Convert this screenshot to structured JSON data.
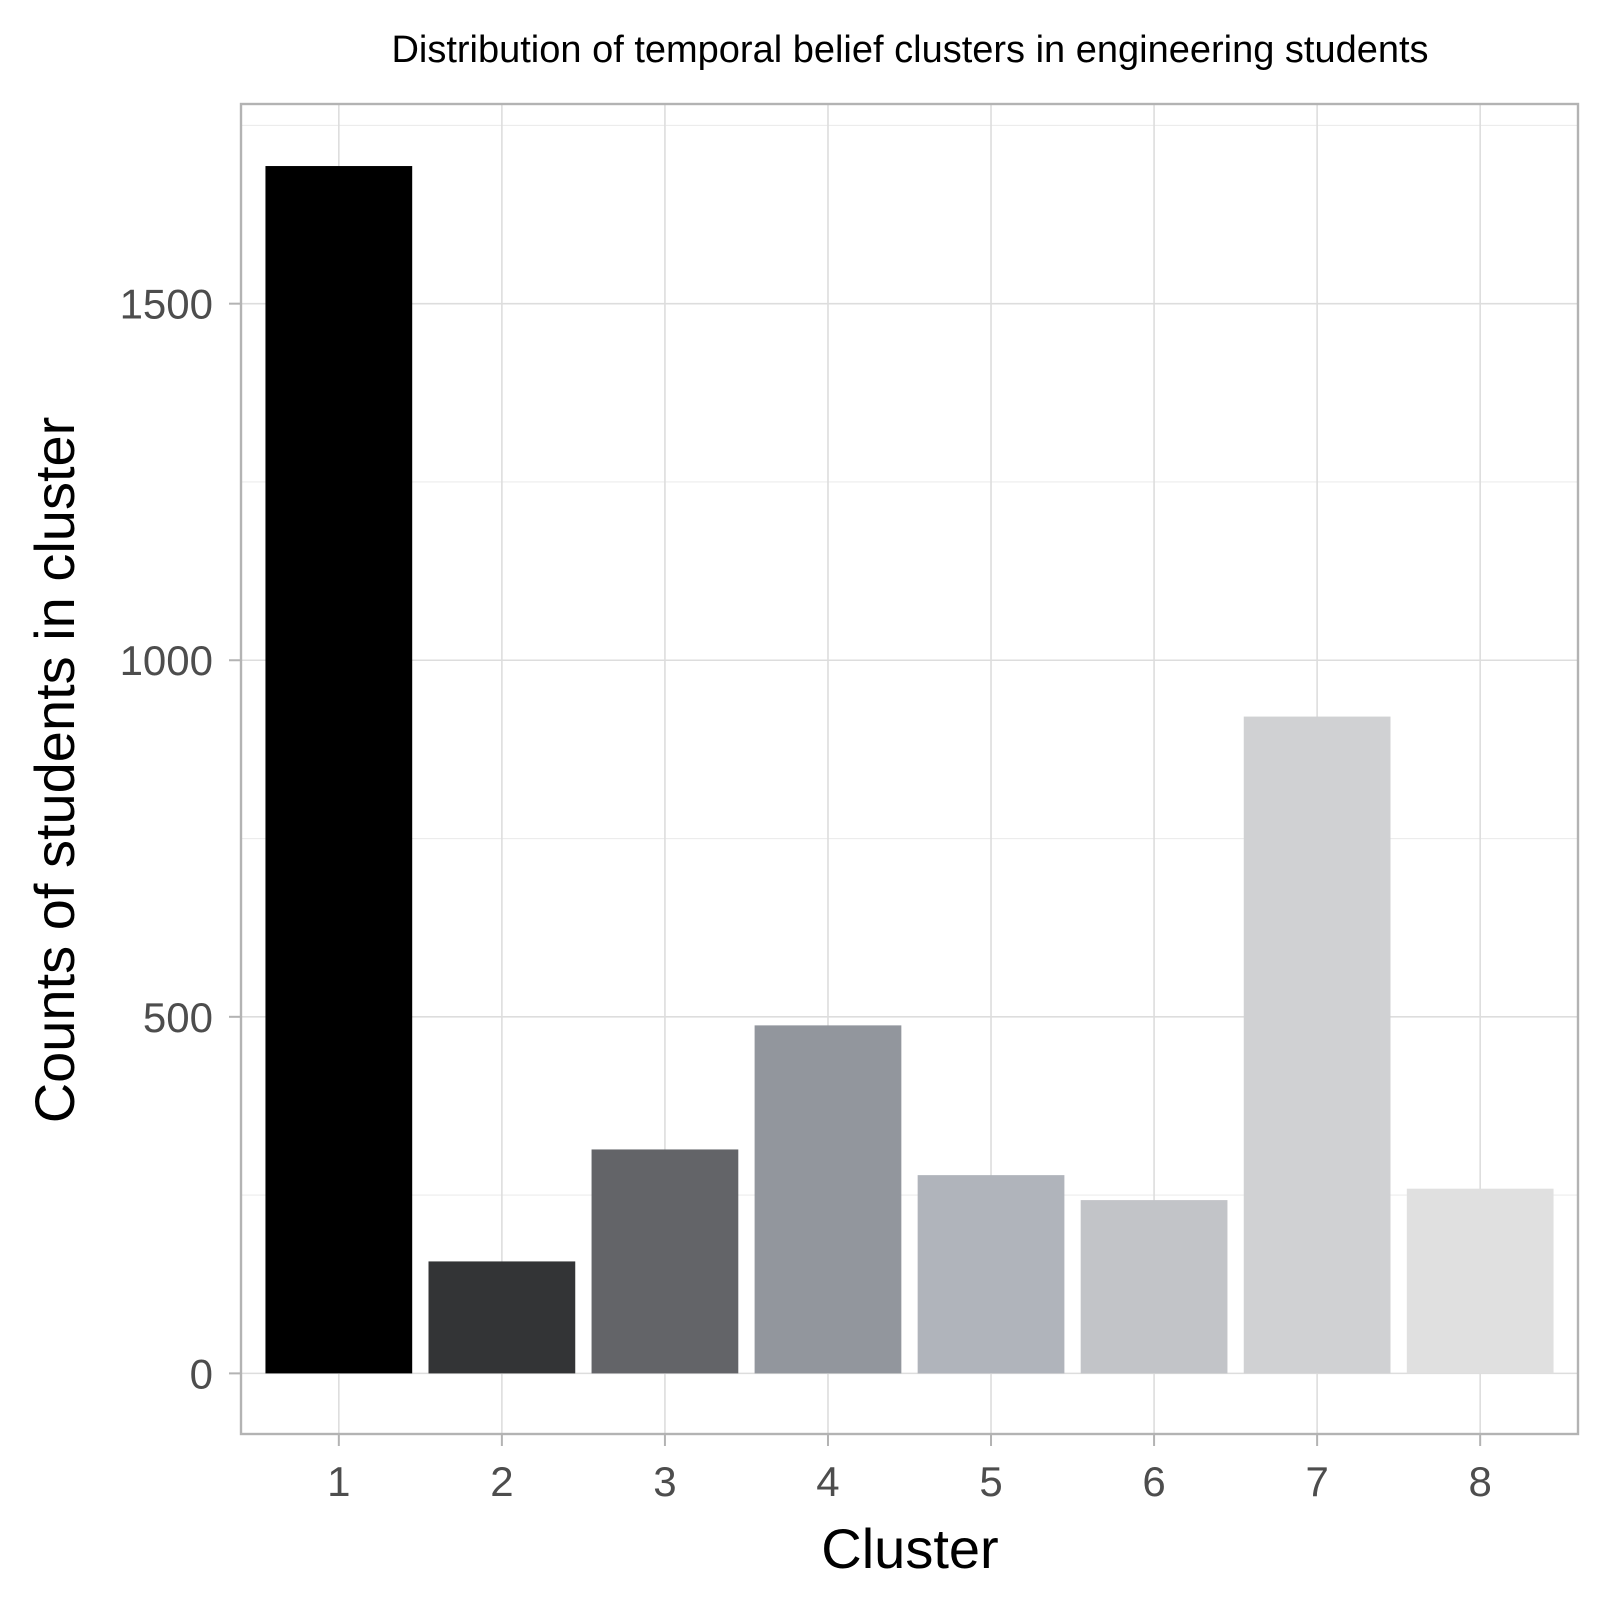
{
  "chart_data": {
    "type": "bar",
    "title": "Distribution of temporal belief clusters in engineering students",
    "xlabel": "Cluster",
    "ylabel": "Counts of students in cluster",
    "categories": [
      "1",
      "2",
      "3",
      "4",
      "5",
      "6",
      "7",
      "8"
    ],
    "values": [
      1693,
      157,
      314,
      488,
      278,
      243,
      921,
      259
    ],
    "colors": [
      "#000000",
      "#333436",
      "#636468",
      "#92969d",
      "#b0b4bb",
      "#c2c4c8",
      "#d0d1d3",
      "#e0e0e0"
    ],
    "yticks": [
      0,
      500,
      1000,
      1500
    ],
    "ylim": [
      -85,
      1780
    ],
    "grid": true,
    "legend": "none"
  }
}
